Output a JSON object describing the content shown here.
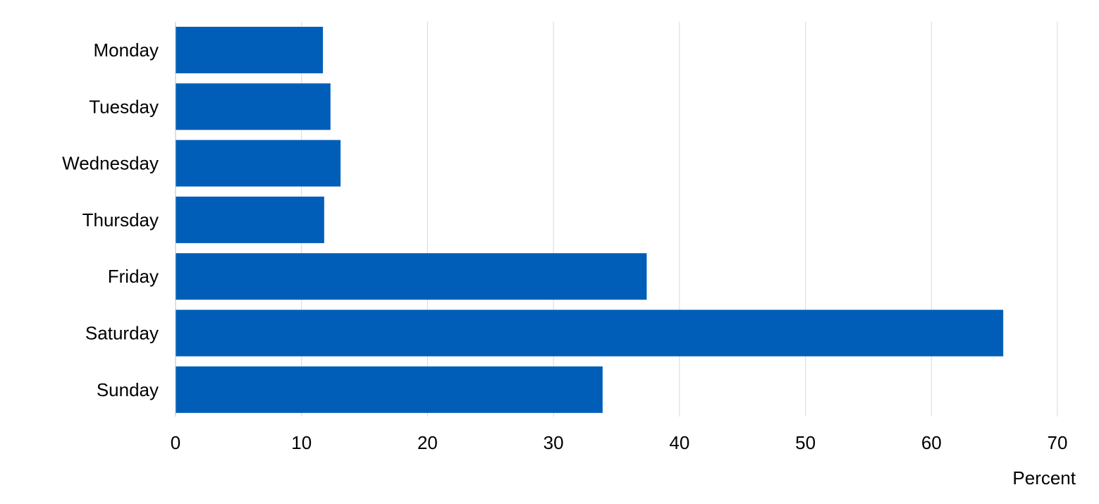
{
  "chart_data": {
    "type": "bar",
    "orientation": "horizontal",
    "categories": [
      "Monday",
      "Tuesday",
      "Wednesday",
      "Thursday",
      "Friday",
      "Saturday",
      "Sunday"
    ],
    "values": [
      11.7,
      12.3,
      13.1,
      11.8,
      37.4,
      65.7,
      33.9
    ],
    "xlabel": "Percent",
    "ylabel": "",
    "xlim": [
      0,
      70
    ],
    "xticks": [
      0,
      10,
      20,
      30,
      40,
      50,
      60,
      70
    ],
    "grid": "vertical",
    "bar_color": "#005EB8"
  }
}
